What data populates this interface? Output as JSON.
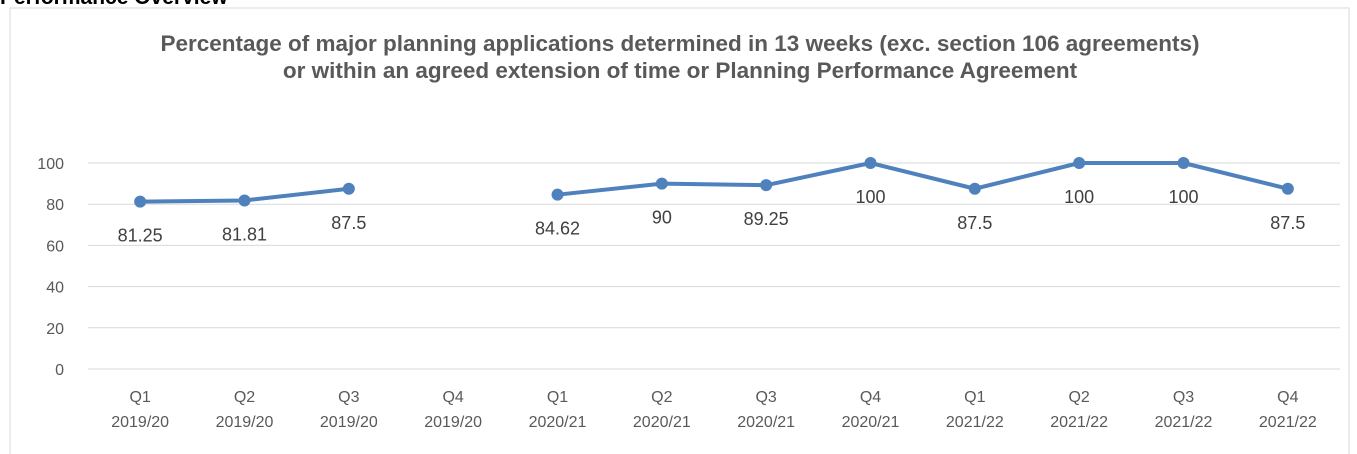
{
  "heading": "Performance Overview",
  "chart_data": {
    "type": "line",
    "title": "Percentage of major planning applications determined in 13 weeks (exc. section 106 agreements) or within an agreed extension of time or Planning Performance Agreement",
    "categories": [
      [
        "Q1",
        "2019/20"
      ],
      [
        "Q2",
        "2019/20"
      ],
      [
        "Q3",
        "2019/20"
      ],
      [
        "Q4",
        "2019/20"
      ],
      [
        "Q1",
        "2020/21"
      ],
      [
        "Q2",
        "2020/21"
      ],
      [
        "Q3",
        "2020/21"
      ],
      [
        "Q4",
        "2020/21"
      ],
      [
        "Q1",
        "2021/22"
      ],
      [
        "Q2",
        "2021/22"
      ],
      [
        "Q3",
        "2021/22"
      ],
      [
        "Q4",
        "2021/22"
      ]
    ],
    "series": [
      {
        "color": "#4f81bd",
        "values": [
          81.25,
          81.81,
          87.5,
          null,
          84.62,
          90,
          89.25,
          100,
          87.5,
          100,
          100,
          87.5
        ]
      }
    ],
    "ylim": [
      0,
      100
    ],
    "yticks": [
      0,
      20,
      40,
      60,
      80,
      100
    ],
    "grid": true
  }
}
